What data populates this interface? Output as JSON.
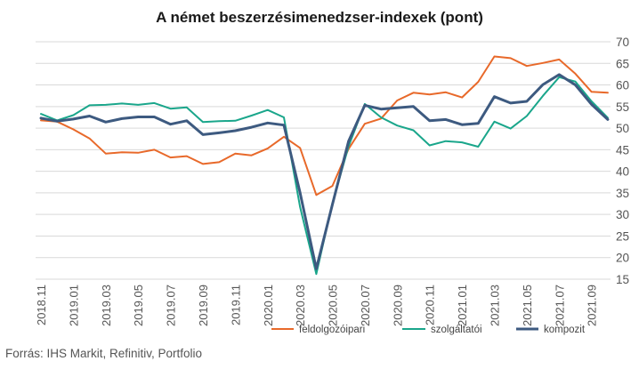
{
  "title": "A német beszerzésimenedzser-indexek (pont)",
  "source": "Forrás: IHS Markit, Refinitiv, Portfolio",
  "chart_data": {
    "type": "line",
    "title": "A német beszerzésimenedzser-indexek (pont)",
    "xlabel": "",
    "ylabel": "",
    "ylim": [
      15,
      70
    ],
    "yticks": [
      15,
      20,
      25,
      30,
      35,
      40,
      45,
      50,
      55,
      60,
      65,
      70
    ],
    "ytick_labels": [
      "15",
      "20",
      "25",
      "30",
      "35",
      "40",
      "45",
      "50",
      "55",
      "60",
      "65",
      "70"
    ],
    "grid": "horizontal",
    "legend_position": "bottom-right",
    "x": [
      "2018.11",
      "2018.12",
      "2019.01",
      "2019.02",
      "2019.03",
      "2019.04",
      "2019.05",
      "2019.06",
      "2019.07",
      "2019.08",
      "2019.09",
      "2019.10",
      "2019.11",
      "2019.12",
      "2020.01",
      "2020.02",
      "2020.03",
      "2020.04",
      "2020.05",
      "2020.06",
      "2020.07",
      "2020.08",
      "2020.09",
      "2020.10",
      "2020.11",
      "2020.12",
      "2021.01",
      "2021.02",
      "2021.03",
      "2021.04",
      "2021.05",
      "2021.06",
      "2021.07",
      "2021.08",
      "2021.09",
      "2021.10"
    ],
    "xtick_labels": [
      "2018.11",
      "2019.01",
      "2019.03",
      "2019.05",
      "2019.07",
      "2019.09",
      "2019.11",
      "2020.01",
      "2020.03",
      "2020.05",
      "2020.07",
      "2020.09",
      "2020.11",
      "2021.01",
      "2021.03",
      "2021.05",
      "2021.07",
      "2021.09"
    ],
    "series": [
      {
        "name": "feldolgozóipari",
        "color": "#e8692a",
        "values": [
          51.8,
          51.5,
          49.7,
          47.6,
          44.1,
          44.4,
          44.3,
          45.0,
          43.2,
          43.5,
          41.7,
          42.1,
          44.1,
          43.7,
          45.3,
          48.0,
          45.4,
          34.5,
          36.6,
          45.2,
          51.0,
          52.2,
          56.4,
          58.2,
          57.8,
          58.3,
          57.1,
          60.7,
          66.6,
          66.2,
          64.4,
          65.1,
          65.9,
          62.6,
          58.4,
          58.2
        ]
      },
      {
        "name": "szolgáltatói",
        "color": "#1aa68b",
        "values": [
          53.3,
          51.8,
          53.0,
          55.3,
          55.4,
          55.7,
          55.4,
          55.8,
          54.5,
          54.8,
          51.4,
          51.6,
          51.7,
          52.9,
          54.2,
          52.5,
          31.7,
          16.2,
          32.6,
          45.8,
          55.6,
          52.5,
          50.6,
          49.5,
          46.0,
          47.0,
          46.7,
          45.7,
          51.5,
          49.9,
          52.8,
          57.5,
          61.8,
          60.8,
          56.2,
          52.4
        ]
      },
      {
        "name": "kompozit",
        "color": "#3d5a80",
        "values": [
          52.3,
          51.6,
          52.1,
          52.8,
          51.4,
          52.2,
          52.6,
          52.6,
          50.9,
          51.7,
          48.5,
          48.9,
          49.4,
          50.2,
          51.2,
          50.7,
          35.0,
          17.4,
          32.3,
          47.0,
          55.3,
          54.4,
          54.7,
          55.0,
          51.7,
          52.0,
          50.8,
          51.1,
          57.3,
          55.8,
          56.2,
          60.1,
          62.4,
          60.0,
          55.5,
          52.0
        ]
      }
    ]
  }
}
